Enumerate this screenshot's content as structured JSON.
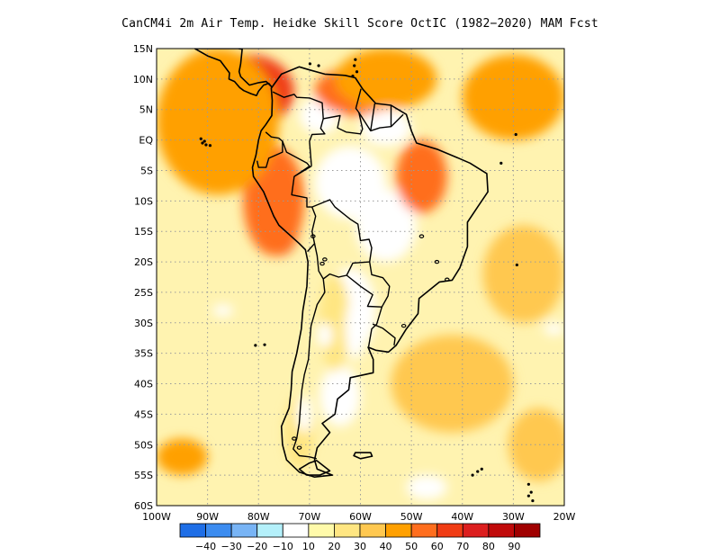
{
  "title": "CanCM4i  2m Air Temp. Heidke Skill Score OctIC (1982−2020) MAM Fcst",
  "map": {
    "lon_range": [
      -100,
      -20
    ],
    "lat_range": [
      -60,
      15
    ],
    "grid": true,
    "y_ticks": [
      {
        "value": 15,
        "label": "15N"
      },
      {
        "value": 10,
        "label": "10N"
      },
      {
        "value": 5,
        "label": "5N"
      },
      {
        "value": 0,
        "label": "EQ"
      },
      {
        "value": -5,
        "label": "5S"
      },
      {
        "value": -10,
        "label": "10S"
      },
      {
        "value": -15,
        "label": "15S"
      },
      {
        "value": -20,
        "label": "20S"
      },
      {
        "value": -25,
        "label": "25S"
      },
      {
        "value": -30,
        "label": "30S"
      },
      {
        "value": -35,
        "label": "35S"
      },
      {
        "value": -40,
        "label": "40S"
      },
      {
        "value": -45,
        "label": "45S"
      },
      {
        "value": -50,
        "label": "50S"
      },
      {
        "value": -55,
        "label": "55S"
      },
      {
        "value": -60,
        "label": "60S"
      }
    ],
    "x_ticks": [
      {
        "value": -100,
        "label": "100W"
      },
      {
        "value": -90,
        "label": "90W"
      },
      {
        "value": -80,
        "label": "80W"
      },
      {
        "value": -70,
        "label": "70W"
      },
      {
        "value": -60,
        "label": "60W"
      },
      {
        "value": -50,
        "label": "50W"
      },
      {
        "value": -40,
        "label": "40W"
      },
      {
        "value": -30,
        "label": "30W"
      },
      {
        "value": -20,
        "label": "20W"
      }
    ]
  },
  "colorbar": {
    "colors": [
      "#1e6ee6",
      "#3c8cf0",
      "#78b4f5",
      "#b4f0fa",
      "#ffffff",
      "#fffaaa",
      "#ffe682",
      "#ffc850",
      "#ffa000",
      "#ff6e1e",
      "#f03c14",
      "#dc1e1e",
      "#c00a0a",
      "#a00000"
    ],
    "labels": [
      "−40",
      "−30",
      "−20",
      "−10",
      "10",
      "20",
      "30",
      "40",
      "50",
      "60",
      "70",
      "80",
      "90"
    ]
  },
  "colors": {
    "background_fill": "#fff3b0",
    "coast": "#000000"
  },
  "skill_regions": [
    {
      "level": 70,
      "lon": -88,
      "lat": 9,
      "rlon": 3.5,
      "rlat": 3
    },
    {
      "level": 60,
      "lon": -85,
      "lat": 7,
      "rlon": 5,
      "rlat": 4
    },
    {
      "level": 50,
      "lon": -82,
      "lat": 8,
      "rlon": 9,
      "rlat": 6
    },
    {
      "level": 50,
      "lon": -76,
      "lat": -14,
      "rlon": 4,
      "rlat": 5
    },
    {
      "level": 40,
      "lon": -77,
      "lat": -10,
      "rlon": 6,
      "rlat": 9
    },
    {
      "level": 50,
      "lon": -61,
      "lat": 7,
      "rlon": 4,
      "rlat": 3
    },
    {
      "level": 40,
      "lon": -61,
      "lat": 8,
      "rlon": 8,
      "rlat": 4
    },
    {
      "level": 40,
      "lon": -48,
      "lat": -6,
      "rlon": 5,
      "rlat": 6
    },
    {
      "level": 30,
      "lon": -88,
      "lat": 3,
      "rlon": 12,
      "rlat": 12
    },
    {
      "level": 30,
      "lon": -30,
      "lat": 7,
      "rlon": 10,
      "rlat": 7
    },
    {
      "level": 30,
      "lon": -95,
      "lat": -52,
      "rlon": 5,
      "rlat": 3
    },
    {
      "level": 30,
      "lon": -55,
      "lat": 10,
      "rlon": 10,
      "rlat": 5
    },
    {
      "level": 20,
      "lon": -42,
      "lat": -40,
      "rlon": 12,
      "rlat": 8
    },
    {
      "level": 20,
      "lon": -28,
      "lat": -22,
      "rlon": 8,
      "rlat": 8
    },
    {
      "level": 20,
      "lon": -25,
      "lat": -50,
      "rlon": 6,
      "rlat": 6
    },
    {
      "level": 10,
      "lon": -65,
      "lat": -30,
      "rlon": 3,
      "rlat": 8
    },
    {
      "level": 10,
      "lon": -72,
      "lat": -48,
      "rlon": 3,
      "rlat": 6
    },
    {
      "level": -10,
      "lon": -61,
      "lat": -31,
      "rlon": 2,
      "rlat": 5
    },
    {
      "level": -10,
      "lon": -67,
      "lat": -32,
      "rlon": 1.5,
      "rlat": 2
    },
    {
      "level": -10,
      "lon": -71,
      "lat": -45,
      "rlon": 1.5,
      "rlat": 3
    },
    {
      "level": -10,
      "lon": -47,
      "lat": -57,
      "rlon": 4,
      "rlat": 2
    },
    {
      "level": -10,
      "lon": -87,
      "lat": -28,
      "rlon": 2,
      "rlat": 1
    },
    {
      "level": -10,
      "lon": -22,
      "lat": -31,
      "rlon": 2,
      "rlat": 1
    }
  ],
  "land": {
    "south_america": [
      [
        -77.5,
        8.5
      ],
      [
        -75.5,
        10.8
      ],
      [
        -72,
        12
      ],
      [
        -70,
        11.5
      ],
      [
        -67,
        10.8
      ],
      [
        -63,
        10.6
      ],
      [
        -61,
        10.2
      ],
      [
        -59.5,
        8.3
      ],
      [
        -57,
        6
      ],
      [
        -54,
        5.7
      ],
      [
        -51,
        4.2
      ],
      [
        -50,
        1.5
      ],
      [
        -49,
        -0.5
      ],
      [
        -45,
        -1.5
      ],
      [
        -41,
        -2.9
      ],
      [
        -38.5,
        -3.8
      ],
      [
        -35.2,
        -5.5
      ],
      [
        -35,
        -8.5
      ],
      [
        -37,
        -11
      ],
      [
        -39,
        -13.5
      ],
      [
        -39,
        -17.5
      ],
      [
        -40.5,
        -21
      ],
      [
        -42,
        -23
      ],
      [
        -44.5,
        -23.3
      ],
      [
        -48.5,
        -26
      ],
      [
        -48.7,
        -28.5
      ],
      [
        -51,
        -31
      ],
      [
        -53,
        -33.7
      ],
      [
        -54.5,
        -34.8
      ],
      [
        -57,
        -34.5
      ],
      [
        -58.5,
        -34
      ],
      [
        -57.5,
        -36
      ],
      [
        -57.5,
        -38.2
      ],
      [
        -62,
        -39
      ],
      [
        -62.3,
        -41
      ],
      [
        -64.5,
        -42.5
      ],
      [
        -65,
        -45
      ],
      [
        -67.5,
        -46.5
      ],
      [
        -66,
        -48
      ],
      [
        -68.5,
        -50.5
      ],
      [
        -69,
        -52.5
      ],
      [
        -68.5,
        -54
      ],
      [
        -65.5,
        -55
      ],
      [
        -69,
        -55.3
      ],
      [
        -72,
        -54.5
      ],
      [
        -74.5,
        -52.5
      ],
      [
        -75.3,
        -50
      ],
      [
        -75.5,
        -47
      ],
      [
        -74,
        -44
      ],
      [
        -73.6,
        -41
      ],
      [
        -73.4,
        -38
      ],
      [
        -72.5,
        -35
      ],
      [
        -71.6,
        -31
      ],
      [
        -71.3,
        -28
      ],
      [
        -70.5,
        -24
      ],
      [
        -70.3,
        -20
      ],
      [
        -70.8,
        -18
      ],
      [
        -72,
        -17
      ],
      [
        -76,
        -14
      ],
      [
        -77,
        -12.5
      ],
      [
        -79,
        -8.5
      ],
      [
        -81,
        -6
      ],
      [
        -81.2,
        -4.5
      ],
      [
        -80.5,
        -2.5
      ],
      [
        -80,
        0
      ],
      [
        -79.5,
        1.5
      ],
      [
        -78.6,
        2.5
      ],
      [
        -77.4,
        4
      ],
      [
        -77.3,
        6.5
      ],
      [
        -77.5,
        8.5
      ]
    ],
    "central_america": [
      [
        -92.5,
        15
      ],
      [
        -90,
        13.8
      ],
      [
        -87.5,
        13
      ],
      [
        -85.7,
        11
      ],
      [
        -85.8,
        10
      ],
      [
        -84.7,
        9.6
      ],
      [
        -83.7,
        8.6
      ],
      [
        -82.9,
        8.1
      ],
      [
        -81.5,
        7.6
      ],
      [
        -80.4,
        7.3
      ],
      [
        -80,
        8
      ],
      [
        -79,
        9
      ],
      [
        -78,
        9.3
      ],
      [
        -77.4,
        8.7
      ],
      [
        -78.5,
        9.6
      ],
      [
        -80,
        9.4
      ],
      [
        -81.8,
        9
      ],
      [
        -83.5,
        10.4
      ],
      [
        -83.8,
        11.2
      ],
      [
        -83.5,
        12.5
      ],
      [
        -83.2,
        14.9
      ],
      [
        -84,
        15
      ],
      [
        -92.5,
        15
      ]
    ],
    "tierra_del_fuego": [
      [
        -68.6,
        -52.6
      ],
      [
        -66,
        -54.3
      ],
      [
        -68,
        -55
      ],
      [
        -70.5,
        -55
      ],
      [
        -72,
        -54
      ],
      [
        -70,
        -53
      ],
      [
        -68.6,
        -52.6
      ]
    ],
    "falklands": [
      [
        -61,
        -51.3
      ],
      [
        -58,
        -51.3
      ],
      [
        -57.7,
        -51.9
      ],
      [
        -60,
        -52.3
      ],
      [
        -61.3,
        -51.8
      ],
      [
        -61,
        -51.3
      ]
    ]
  },
  "borders": [
    [
      [
        -77.2,
        7.9
      ],
      [
        -75,
        7
      ],
      [
        -73,
        7.5
      ],
      [
        -72.5,
        7
      ],
      [
        -70,
        6.9
      ],
      [
        -67.5,
        6.1
      ],
      [
        -67.3,
        3.5
      ],
      [
        -67.8,
        1.9
      ],
      [
        -67,
        1
      ],
      [
        -69.5,
        0.9
      ],
      [
        -70,
        -0.2
      ],
      [
        -69.6,
        -4.3
      ]
    ],
    [
      [
        -78.6,
        1.3
      ],
      [
        -77.5,
        0.5
      ],
      [
        -76,
        0.3
      ],
      [
        -75.3,
        -0.2
      ],
      [
        -75.3,
        -2
      ],
      [
        -78,
        -3
      ],
      [
        -78.5,
        -4.5
      ],
      [
        -80,
        -4.5
      ],
      [
        -80.3,
        -3.4
      ]
    ],
    [
      [
        -75.3,
        -0.2
      ],
      [
        -74.5,
        -2
      ],
      [
        -70.5,
        -3.8
      ],
      [
        -70,
        -4.3
      ],
      [
        -73,
        -6
      ],
      [
        -73.5,
        -9
      ],
      [
        -70.5,
        -9.5
      ],
      [
        -70.5,
        -11
      ],
      [
        -69.5,
        -11
      ],
      [
        -68.8,
        -12.5
      ],
      [
        -69.5,
        -15
      ],
      [
        -69,
        -17
      ],
      [
        -70.4,
        -18.3
      ]
    ],
    [
      [
        -69.6,
        -4.3
      ],
      [
        -73,
        -6
      ]
    ],
    [
      [
        -69.5,
        -11
      ],
      [
        -66,
        -9.8
      ],
      [
        -65,
        -11
      ],
      [
        -62,
        -13
      ],
      [
        -60.5,
        -13.8
      ],
      [
        -60,
        -16.5
      ],
      [
        -58.3,
        -16.3
      ],
      [
        -57.8,
        -17.7
      ],
      [
        -58.2,
        -20
      ]
    ],
    [
      [
        -69,
        -17
      ],
      [
        -68.5,
        -19
      ],
      [
        -68.2,
        -21.5
      ],
      [
        -67.3,
        -22.8
      ],
      [
        -66,
        -22
      ],
      [
        -64.3,
        -22.5
      ],
      [
        -62.7,
        -22.2
      ],
      [
        -61.5,
        -20.2
      ],
      [
        -58.2,
        -20
      ]
    ],
    [
      [
        -67.3,
        -22.8
      ],
      [
        -67,
        -25
      ],
      [
        -68.5,
        -27
      ],
      [
        -69.7,
        -30.5
      ],
      [
        -70,
        -33.5
      ],
      [
        -70.2,
        -36
      ],
      [
        -71,
        -38.5
      ],
      [
        -71.5,
        -41
      ],
      [
        -71.8,
        -44
      ],
      [
        -72,
        -46.5
      ],
      [
        -72.5,
        -49
      ],
      [
        -73.2,
        -50.7
      ],
      [
        -72,
        -51.8
      ],
      [
        -70,
        -52
      ],
      [
        -68.6,
        -52.3
      ]
    ],
    [
      [
        -62.7,
        -22.2
      ],
      [
        -60,
        -24
      ],
      [
        -57.6,
        -25.4
      ],
      [
        -58.6,
        -27.3
      ],
      [
        -55.8,
        -27.4
      ],
      [
        -54.6,
        -25.6
      ],
      [
        -54.3,
        -24
      ],
      [
        -55.6,
        -22.6
      ],
      [
        -57.8,
        -22.1
      ],
      [
        -58.2,
        -20
      ]
    ],
    [
      [
        -55.8,
        -27.4
      ],
      [
        -56.8,
        -30.2
      ],
      [
        -57.8,
        -31
      ],
      [
        -58.4,
        -33.9
      ]
    ],
    [
      [
        -57.6,
        -30.2
      ],
      [
        -55.6,
        -30.9
      ],
      [
        -53.2,
        -32.5
      ],
      [
        -53.4,
        -33.7
      ]
    ],
    [
      [
        -67.3,
        3.5
      ],
      [
        -64,
        4
      ],
      [
        -64.5,
        2
      ],
      [
        -62.8,
        1.3
      ],
      [
        -60,
        1
      ],
      [
        -59.6,
        1.8
      ],
      [
        -60.3,
        4.5
      ],
      [
        -60.9,
        5.2
      ],
      [
        -59.9,
        8.4
      ]
    ],
    [
      [
        -60.3,
        4.5
      ],
      [
        -58,
        1.5
      ],
      [
        -56.2,
        2
      ],
      [
        -54,
        2.2
      ],
      [
        -51.6,
        4.2
      ]
    ],
    [
      [
        -58,
        1.5
      ],
      [
        -57.2,
        6
      ]
    ],
    [
      [
        -54,
        2.2
      ],
      [
        -54,
        5.7
      ]
    ]
  ],
  "small_islands": [
    [
      -91,
      -0.5
    ],
    [
      -90.3,
      -0.8
    ],
    [
      -89.5,
      -0.9
    ],
    [
      -91.3,
      0.2
    ],
    [
      -90.6,
      -0.2
    ],
    [
      -80.6,
      -33.7
    ],
    [
      -78.8,
      -33.6
    ],
    [
      -61.5,
      10.5
    ],
    [
      -60.7,
      11.2
    ],
    [
      -69.9,
      12.5
    ],
    [
      -68.2,
      12.2
    ],
    [
      -61,
      13.2
    ],
    [
      -61.2,
      12.2
    ],
    [
      -29.3,
      -20.5
    ],
    [
      -32.4,
      -3.8
    ],
    [
      -29.5,
      0.9
    ],
    [
      -38,
      -55
    ],
    [
      -37,
      -54.4
    ],
    [
      -36.2,
      -54
    ],
    [
      -26.5,
      -57.8
    ],
    [
      -27,
      -58.4
    ],
    [
      -26.2,
      -59.2
    ],
    [
      -27,
      -56.5
    ]
  ],
  "lakes": [
    [
      -69.3,
      -15.8
    ],
    [
      -67,
      -19.6
    ],
    [
      -67.5,
      -20.3
    ],
    [
      -43,
      -22.9
    ],
    [
      -45,
      -20
    ],
    [
      -48,
      -15.8
    ],
    [
      -51.5,
      -30.5
    ],
    [
      -72,
      -50.5
    ],
    [
      -73,
      -49
    ]
  ]
}
